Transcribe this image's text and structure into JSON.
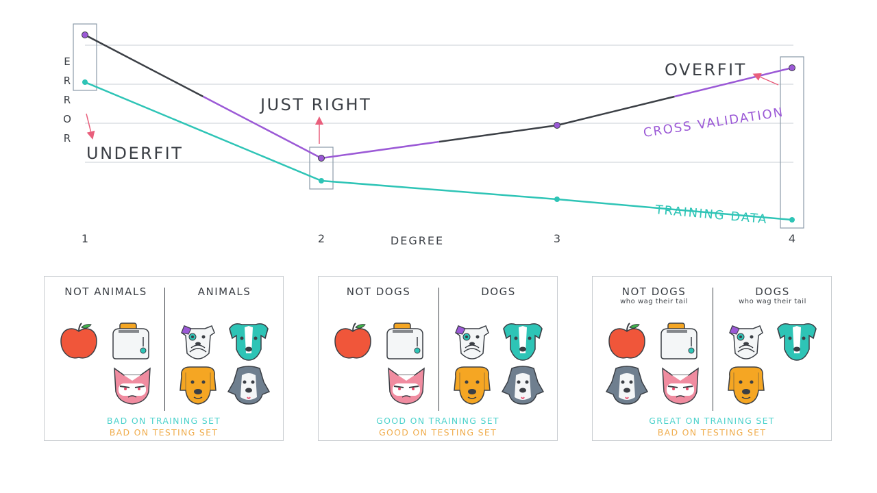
{
  "colors": {
    "cross_validation": "#9b59d6",
    "training": "#2ec4b6",
    "gray_line": "#3b3f45",
    "arrow": "#e95f7c",
    "box": "#8a9aa8",
    "good": "#4dd2cc",
    "testing": "#f0ad4e"
  },
  "chart_data": {
    "type": "line",
    "xlabel": "DEGREE",
    "ylabel": "ERROR",
    "categories": [
      "1",
      "2",
      "3",
      "4"
    ],
    "series": [
      {
        "name": "CROSS VALIDATION",
        "values": [
          9.2,
          3.2,
          4.8,
          7.6
        ]
      },
      {
        "name": "TRAINING DATA",
        "values": [
          6.9,
          2.1,
          1.2,
          0.2
        ]
      }
    ],
    "ylim": [
      0,
      10
    ],
    "grid": true,
    "legend": "inline labels on lines",
    "annotations": [
      "UNDERFIT",
      "JUST RIGHT",
      "OVERFIT"
    ]
  },
  "panels": [
    {
      "left_title": "NOT ANIMALS",
      "left_subtitle": "",
      "right_title": "ANIMALS",
      "right_subtitle": "",
      "left_icons": [
        "apple-icon",
        "toaster-icon",
        "grumpy-cat-icon"
      ],
      "right_icons": [
        "terrier-dog-icon",
        "teal-dog-icon",
        "orange-dog-icon",
        "gray-dog-icon"
      ],
      "result_training": "BAD ON TRAINING SET",
      "result_testing": "BAD ON TESTING SET"
    },
    {
      "left_title": "NOT DOGS",
      "left_subtitle": "",
      "right_title": "DOGS",
      "right_subtitle": "",
      "left_icons": [
        "apple-icon",
        "toaster-icon",
        "grumpy-cat-icon"
      ],
      "right_icons": [
        "terrier-dog-icon",
        "teal-dog-icon",
        "orange-dog-icon",
        "gray-dog-icon"
      ],
      "result_training": "GOOD ON TRAINING SET",
      "result_testing": "GOOD ON TESTING SET"
    },
    {
      "left_title": "NOT DOGS",
      "left_subtitle": "who wag their tail",
      "right_title": "DOGS",
      "right_subtitle": "who wag their tail",
      "left_icons": [
        "apple-icon",
        "toaster-icon",
        "gray-dog-icon",
        "grumpy-cat-icon"
      ],
      "right_icons": [
        "terrier-dog-icon",
        "teal-dog-icon",
        "orange-dog-icon"
      ],
      "result_training": "GREAT ON TRAINING SET",
      "result_testing": "BAD ON TESTING SET"
    }
  ]
}
